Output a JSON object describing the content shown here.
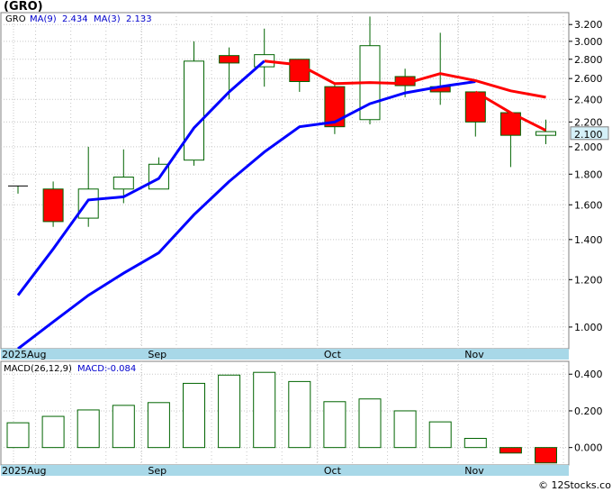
{
  "title": "(GRO)",
  "watermark": "© 12Stocks.com",
  "colors": {
    "up": "#ffffff",
    "down": "#ff0000",
    "candle_outline": "#006400",
    "ma_fast": "#ff0000",
    "ma_slow": "#0000ff",
    "macd_bar": "#006400",
    "macd_neg_fill": "#ff0000",
    "axis_band": "#a8d8e8",
    "grid": "#c8c8c8",
    "price_tag": "#d4f0f8"
  },
  "chart_data": [
    {
      "type": "candlestick",
      "name": "price",
      "legend": {
        "symbol": "GRO",
        "ma9_label": "MA(9)",
        "ma9_value": "2.434",
        "ma3_label": "MA(3)",
        "ma3_value": "2.133"
      },
      "scale": "log",
      "ylim": [
        0.92,
        3.35
      ],
      "y_ticks": [
        1.0,
        1.2,
        1.4,
        1.6,
        1.8,
        2.0,
        2.2,
        2.4,
        2.6,
        2.8,
        3.0,
        3.2
      ],
      "y_tick_labels": [
        "1.000",
        "1.200",
        "1.400",
        "1.600",
        "1.800",
        "2.000",
        "2.200",
        "2.400",
        "2.600",
        "2.800",
        "3.000",
        "3.200"
      ],
      "last_price_label": "2.100",
      "last_price": 2.1,
      "x_labels": [
        {
          "label": "2025Aug",
          "index": 0
        },
        {
          "label": "Sep",
          "index": 4
        },
        {
          "label": "Oct",
          "index": 9
        },
        {
          "label": "Nov",
          "index": 13
        }
      ],
      "candles": [
        {
          "o": 1.72,
          "h": 1.72,
          "l": 1.67,
          "c": 1.72
        },
        {
          "o": 1.7,
          "h": 1.75,
          "l": 1.47,
          "c": 1.5
        },
        {
          "o": 1.52,
          "h": 2.0,
          "l": 1.47,
          "c": 1.7
        },
        {
          "o": 1.7,
          "h": 1.98,
          "l": 1.61,
          "c": 1.78
        },
        {
          "o": 1.7,
          "h": 1.92,
          "l": 1.7,
          "c": 1.87
        },
        {
          "o": 1.9,
          "h": 3.0,
          "l": 1.86,
          "c": 2.78
        },
        {
          "o": 2.84,
          "h": 2.93,
          "l": 2.4,
          "c": 2.76
        },
        {
          "o": 2.72,
          "h": 3.15,
          "l": 2.52,
          "c": 2.85
        },
        {
          "o": 2.8,
          "h": 2.8,
          "l": 2.47,
          "c": 2.57
        },
        {
          "o": 2.52,
          "h": 2.55,
          "l": 2.1,
          "c": 2.16
        },
        {
          "o": 2.22,
          "h": 3.3,
          "l": 2.18,
          "c": 2.95
        },
        {
          "o": 2.62,
          "h": 2.7,
          "l": 2.42,
          "c": 2.53
        },
        {
          "o": 2.52,
          "h": 3.1,
          "l": 2.35,
          "c": 2.47
        },
        {
          "o": 2.47,
          "h": 2.47,
          "l": 2.08,
          "c": 2.2
        },
        {
          "o": 2.28,
          "h": 2.28,
          "l": 1.85,
          "c": 2.09
        },
        {
          "o": 2.09,
          "h": 2.22,
          "l": 2.02,
          "c": 2.12
        }
      ],
      "ma3": [
        null,
        null,
        null,
        null,
        null,
        null,
        null,
        2.78,
        2.74,
        2.55,
        2.56,
        2.55,
        2.65,
        2.58,
        2.48,
        2.42
      ],
      "ma3_trail": [
        null,
        null,
        null,
        null,
        null,
        null,
        null,
        null,
        null,
        null,
        null,
        null,
        null,
        2.47,
        2.28,
        2.13
      ],
      "ma9": [
        0.92,
        1.02,
        1.13,
        1.23,
        1.33,
        1.54,
        1.75,
        1.96,
        2.16,
        2.2,
        2.36,
        2.46,
        2.52,
        2.57,
        null,
        null
      ]
    },
    {
      "type": "bar",
      "name": "macd",
      "legend": {
        "label": "MACD(26,12,9)",
        "value_label": "MACD:",
        "value": "-0.084"
      },
      "ylim": [
        -0.095,
        0.47
      ],
      "y_ticks": [
        0.0,
        0.2,
        0.4
      ],
      "y_tick_labels": [
        "0.000",
        "0.200",
        "0.400"
      ],
      "x_labels": [
        {
          "label": "2025Aug",
          "index": 0
        },
        {
          "label": "Sep",
          "index": 4
        },
        {
          "label": "Oct",
          "index": 9
        },
        {
          "label": "Nov",
          "index": 13
        }
      ],
      "values": [
        0.135,
        0.17,
        0.205,
        0.23,
        0.245,
        0.35,
        0.395,
        0.41,
        0.36,
        0.25,
        0.265,
        0.2,
        0.14,
        0.05,
        -0.03,
        -0.084
      ]
    }
  ]
}
